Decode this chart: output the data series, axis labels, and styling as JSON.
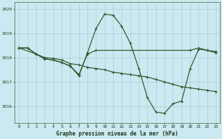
{
  "title": "Graphe pression niveau de la mer (hPa)",
  "bg_color": "#cce8f0",
  "grid_color": "#aaccdd",
  "line_color": "#2d5a2d",
  "xlim": [
    -0.5,
    23.5
  ],
  "ylim": [
    1015.3,
    1020.3
  ],
  "yticks": [
    1016,
    1017,
    1018,
    1019,
    1020
  ],
  "xticks": [
    0,
    1,
    2,
    3,
    4,
    5,
    6,
    7,
    8,
    9,
    10,
    11,
    12,
    13,
    14,
    15,
    16,
    17,
    18,
    19,
    20,
    21,
    22,
    23
  ],
  "line1_x": [
    0,
    1,
    2,
    3,
    4,
    5,
    6,
    7,
    8,
    9,
    10,
    11,
    12,
    13,
    14,
    15,
    16,
    17,
    18,
    19,
    20,
    21,
    22,
    23
  ],
  "line1_y": [
    1018.4,
    1018.4,
    1018.15,
    1018.0,
    1017.97,
    1017.9,
    1017.75,
    1017.7,
    1017.6,
    1017.55,
    1017.5,
    1017.4,
    1017.35,
    1017.3,
    1017.25,
    1017.2,
    1017.1,
    1017.0,
    1016.9,
    1016.8,
    1016.75,
    1016.7,
    1016.65,
    1016.6
  ],
  "line2_x": [
    0,
    1,
    2,
    3,
    4,
    5,
    6,
    7,
    8,
    9,
    10,
    11,
    12,
    13,
    14,
    15,
    16,
    17,
    18,
    19,
    20,
    21,
    22,
    23
  ],
  "line2_y": [
    1018.4,
    1018.4,
    1018.15,
    1017.95,
    1017.9,
    1017.8,
    1017.65,
    1017.25,
    1018.2,
    1019.2,
    1019.8,
    1019.75,
    1019.3,
    1018.6,
    1017.55,
    1016.35,
    1015.75,
    1015.7,
    1016.1,
    1016.2,
    1017.55,
    1018.35,
    1018.3,
    1018.25
  ],
  "line3_x": [
    0,
    2,
    3,
    4,
    5,
    6,
    7,
    8,
    9,
    20,
    21,
    22,
    23
  ],
  "line3_y": [
    1018.4,
    1018.15,
    1017.95,
    1017.9,
    1017.8,
    1017.65,
    1017.3,
    1018.15,
    1018.3,
    1018.3,
    1018.4,
    1018.3,
    1018.2
  ]
}
